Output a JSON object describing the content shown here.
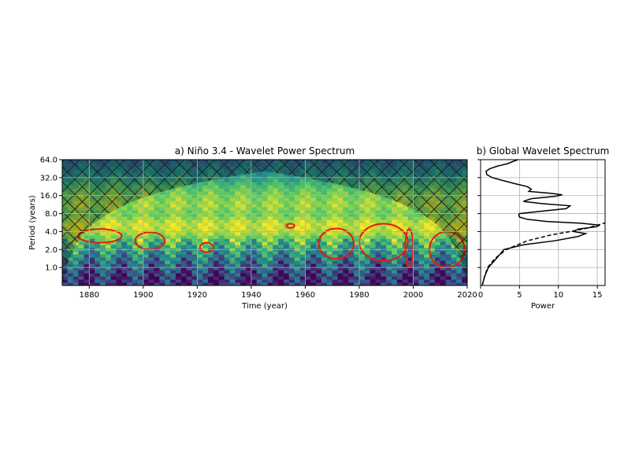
{
  "chart_data": [
    {
      "type": "heatmap",
      "title": "a) Niño 3.4 - Wavelet Power Spectrum",
      "xlabel": "Time (year)",
      "ylabel": "Period (years)",
      "xlim": [
        1870,
        2020
      ],
      "ylim": [
        0.5,
        64
      ],
      "yscale": "log2",
      "xticks": [
        1880,
        1900,
        1920,
        1940,
        1960,
        1980,
        2000,
        2020
      ],
      "xtick_labels": [
        "1880",
        "1900",
        "1920",
        "1940",
        "1960",
        "1980",
        "2000",
        "2020"
      ],
      "yticks": [
        1,
        2,
        4,
        8,
        16,
        32,
        64
      ],
      "ytick_labels": [
        "1.0",
        "2.0",
        "4.0",
        "8.0",
        "16.0",
        "32.0",
        "64.0"
      ],
      "grid": true,
      "colormap": "viridis",
      "significance_contour_color": "#e8180c",
      "cone_of_influence": "hatched",
      "power_bands": [
        {
          "period": 64,
          "level": 0.35
        },
        {
          "period": 45,
          "level": 0.45
        },
        {
          "period": 32,
          "level": 0.55
        },
        {
          "period": 22,
          "level": 0.72
        },
        {
          "period": 16,
          "level": 0.8
        },
        {
          "period": 11,
          "level": 0.85
        },
        {
          "period": 8,
          "level": 0.78
        },
        {
          "period": 5.5,
          "level": 0.92
        },
        {
          "period": 4,
          "level": 0.9
        },
        {
          "period": 2.8,
          "level": 0.7
        },
        {
          "period": 2,
          "level": 0.55
        },
        {
          "period": 1.4,
          "level": 0.4
        },
        {
          "period": 1,
          "level": 0.28
        },
        {
          "period": 0.7,
          "level": 0.15
        }
      ],
      "significant_regions": [
        {
          "x0": 1876,
          "x1": 1892,
          "p0": 2.6,
          "p1": 4.4
        },
        {
          "x0": 1897,
          "x1": 1908,
          "p0": 2.0,
          "p1": 3.9
        },
        {
          "x0": 1921,
          "x1": 1926,
          "p0": 1.8,
          "p1": 2.6
        },
        {
          "x0": 1953,
          "x1": 1956,
          "p0": 4.6,
          "p1": 5.4
        },
        {
          "x0": 1965,
          "x1": 1978,
          "p0": 1.4,
          "p1": 4.5
        },
        {
          "x0": 1980,
          "x1": 1998,
          "p0": 1.3,
          "p1": 5.4
        },
        {
          "x0": 1997,
          "x1": 2000,
          "p0": 1.0,
          "p1": 4.4
        },
        {
          "x0": 2006,
          "x1": 2019,
          "p0": 1.0,
          "p1": 4.0
        }
      ]
    },
    {
      "type": "line",
      "title": "b) Global Wavelet Spectrum",
      "xlabel": "Power",
      "ylabel": "",
      "xlim": [
        0,
        16
      ],
      "ylim": [
        0.5,
        64
      ],
      "yscale": "log2",
      "xticks": [
        0,
        5,
        10,
        15
      ],
      "xtick_labels": [
        "0",
        "5",
        "10",
        "15"
      ],
      "grid": true,
      "series": [
        {
          "style": "solid",
          "period": [
            0.5,
            0.7,
            1.0,
            1.4,
            2.0,
            2.4,
            2.8,
            3.3,
            3.7,
            4.0,
            4.4,
            4.8,
            5.1,
            5.5,
            5.9,
            6.4,
            7.0,
            7.6,
            8.0,
            8.8,
            9.7,
            10.8,
            11.7,
            12.8,
            14.2,
            15.5,
            16.5,
            17.5,
            18.8,
            20.5,
            22.6,
            25.2,
            28.3,
            32.0,
            36.0,
            41.0,
            45.2,
            50.0,
            55.0,
            60.0,
            64.0
          ],
          "power": [
            0.2,
            0.5,
            1.0,
            2.0,
            3.0,
            5.5,
            9.5,
            12.5,
            13.5,
            12.0,
            12.5,
            14.8,
            15.3,
            13.0,
            8.5,
            6.0,
            5.0,
            4.9,
            5.0,
            8.0,
            11.0,
            11.5,
            8.0,
            5.5,
            6.5,
            9.5,
            10.5,
            9.0,
            6.2,
            6.5,
            6.0,
            4.5,
            3.0,
            1.5,
            0.8,
            0.7,
            1.2,
            2.2,
            3.5,
            4.2,
            4.8
          ]
        },
        {
          "style": "dashed",
          "period": [
            0.5,
            0.7,
            1.0,
            1.4,
            2.0,
            2.8,
            3.5,
            4.0,
            4.5,
            5.1,
            5.6
          ],
          "power": [
            0.2,
            0.5,
            0.9,
            1.8,
            3.3,
            6.0,
            9.0,
            11.5,
            13.5,
            15.0,
            16.0
          ]
        }
      ]
    }
  ]
}
